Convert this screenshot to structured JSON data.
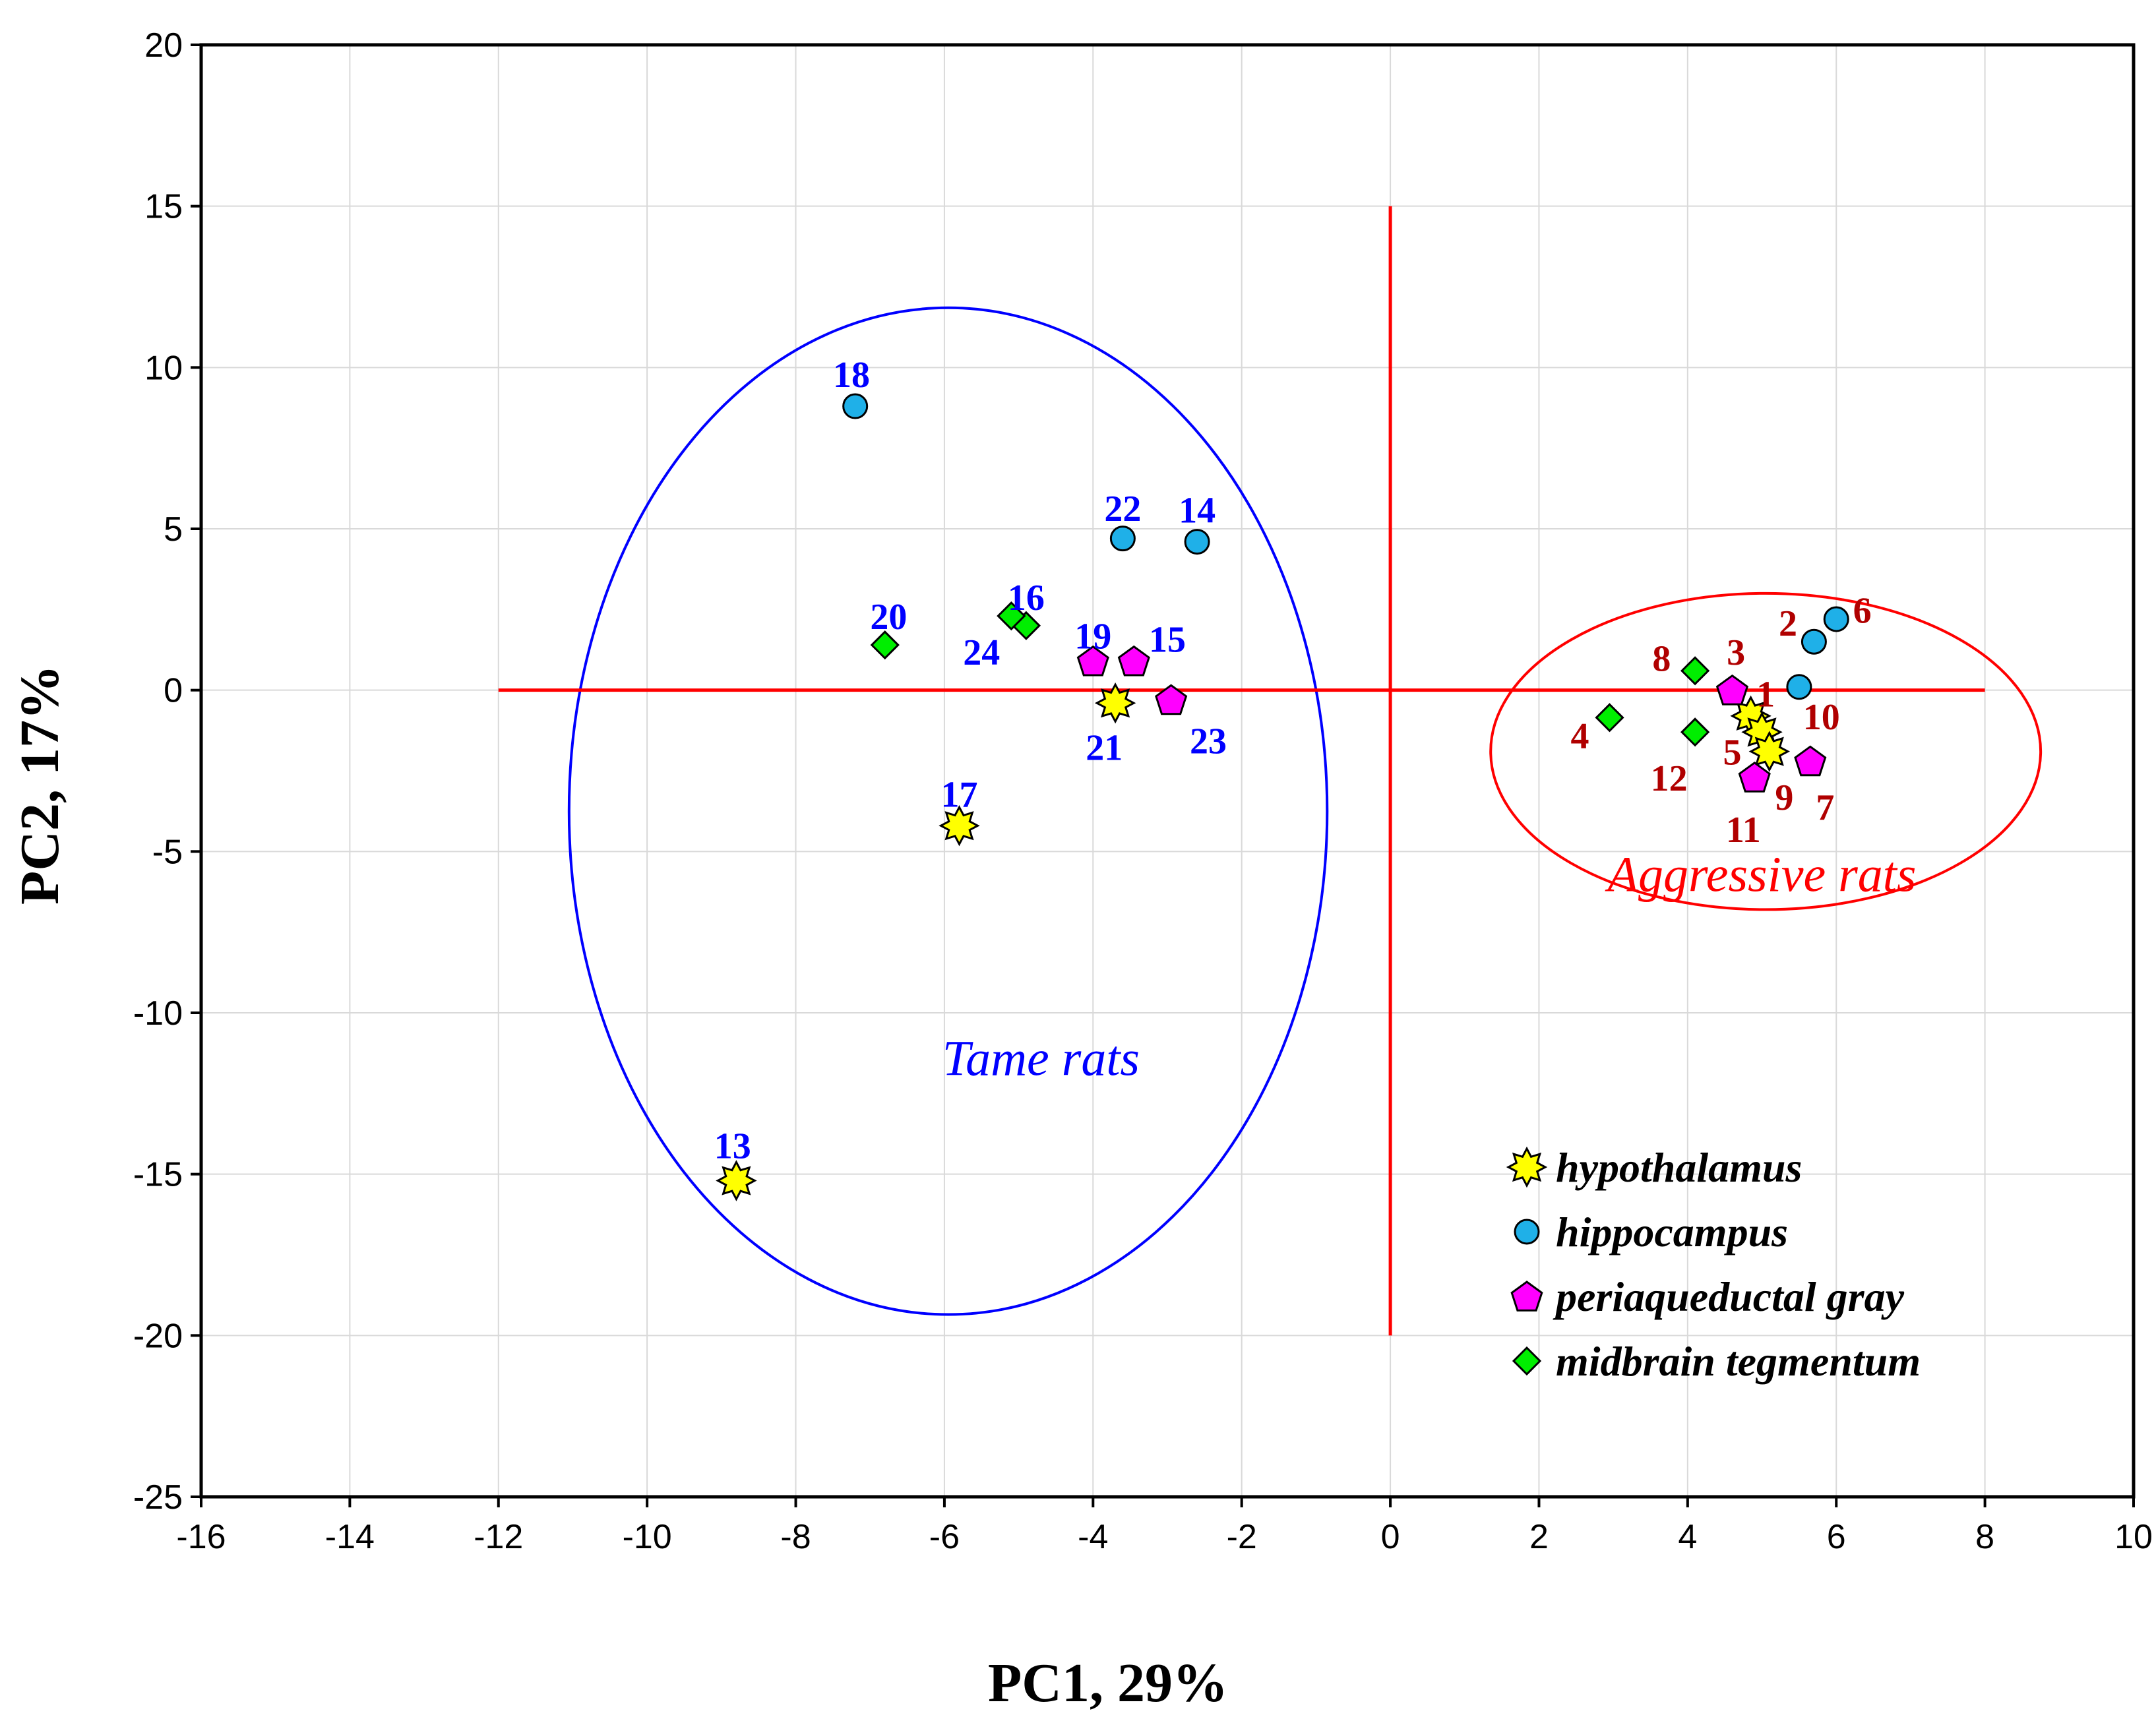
{
  "chart_data": {
    "type": "scatter",
    "title": "",
    "xlabel": "PC1, 29%",
    "ylabel": "PC2, 17%",
    "xlim": [
      -16,
      10
    ],
    "ylim": [
      -25,
      20
    ],
    "xticks": [
      -16,
      -14,
      -12,
      -10,
      -8,
      -6,
      -4,
      -2,
      0,
      2,
      4,
      6,
      8,
      10
    ],
    "yticks": [
      20,
      15,
      10,
      5,
      0,
      -5,
      -10,
      -15,
      -20,
      -25
    ],
    "grid": true,
    "legend_position": "bottom-right",
    "colors": {
      "hypothalamus": "#ffff00",
      "hippocampus": "#1fb0e8",
      "periaqueductal gray": "#ff00ff",
      "midbrain tegmentum": "#00ee00",
      "tame": "#0000ff",
      "aggressive": "#b00000",
      "red_lines": "#ff0000"
    },
    "series": [
      {
        "name": "hypothalamus",
        "marker": "star-icon",
        "points": [
          {
            "x": 4.85,
            "y": -0.8
          },
          {
            "x": 5.0,
            "y": -1.3
          },
          {
            "x": 5.1,
            "y": -1.9
          },
          {
            "x": -8.8,
            "y": -15.2
          },
          {
            "x": -5.8,
            "y": -4.2
          },
          {
            "x": -3.7,
            "y": -0.4
          }
        ]
      },
      {
        "name": "hippocampus",
        "marker": "circle-icon",
        "points": [
          {
            "x": 5.7,
            "y": 1.5
          },
          {
            "x": 6.0,
            "y": 2.2
          },
          {
            "x": 5.5,
            "y": 0.1
          },
          {
            "x": -2.6,
            "y": 4.6
          },
          {
            "x": -7.2,
            "y": 8.8
          },
          {
            "x": -3.6,
            "y": 4.7
          }
        ]
      },
      {
        "name": "periaqueductal gray",
        "marker": "pentagon-icon",
        "points": [
          {
            "x": 4.6,
            "y": 0.0
          },
          {
            "x": 5.65,
            "y": -2.2
          },
          {
            "x": 4.9,
            "y": -2.7
          },
          {
            "x": -3.45,
            "y": 0.9
          },
          {
            "x": -4.0,
            "y": 0.9
          },
          {
            "x": -2.95,
            "y": -0.3
          }
        ]
      },
      {
        "name": "midbrain tegmentum",
        "marker": "diamond-icon",
        "points": [
          {
            "x": 2.95,
            "y": -0.85
          },
          {
            "x": 4.1,
            "y": 0.6
          },
          {
            "x": 4.1,
            "y": -1.3
          },
          {
            "x": -4.9,
            "y": 2.0
          },
          {
            "x": -6.8,
            "y": 1.4
          },
          {
            "x": -5.1,
            "y": 2.3
          }
        ]
      }
    ],
    "point_labels": [
      {
        "text": "1",
        "group": "aggressive",
        "x": 5.05,
        "y": -0.1
      },
      {
        "text": "2",
        "group": "aggressive",
        "x": 5.35,
        "y": 2.1
      },
      {
        "text": "3",
        "group": "aggressive",
        "x": 4.65,
        "y": 1.2
      },
      {
        "text": "4",
        "group": "aggressive",
        "x": 2.55,
        "y": -1.4
      },
      {
        "text": "5",
        "group": "aggressive",
        "x": 4.6,
        "y": -1.9
      },
      {
        "text": "6",
        "group": "aggressive",
        "x": 6.35,
        "y": 2.5
      },
      {
        "text": "7",
        "group": "aggressive",
        "x": 5.85,
        "y": -3.6
      },
      {
        "text": "8",
        "group": "aggressive",
        "x": 3.65,
        "y": 1.0
      },
      {
        "text": "9",
        "group": "aggressive",
        "x": 5.3,
        "y": -3.3
      },
      {
        "text": "10",
        "group": "aggressive",
        "x": 5.8,
        "y": -0.8
      },
      {
        "text": "11",
        "group": "aggressive",
        "x": 4.75,
        "y": -4.3
      },
      {
        "text": "12",
        "group": "aggressive",
        "x": 3.75,
        "y": -2.7
      },
      {
        "text": "13",
        "group": "tame",
        "x": -8.85,
        "y": -14.1
      },
      {
        "text": "14",
        "group": "tame",
        "x": -2.6,
        "y": 5.6
      },
      {
        "text": "15",
        "group": "tame",
        "x": -3.0,
        "y": 1.6
      },
      {
        "text": "16",
        "group": "tame",
        "x": -4.9,
        "y": 2.9
      },
      {
        "text": "17",
        "group": "tame",
        "x": -5.8,
        "y": -3.2
      },
      {
        "text": "18",
        "group": "tame",
        "x": -7.25,
        "y": 9.8
      },
      {
        "text": "19",
        "group": "tame",
        "x": -4.0,
        "y": 1.7
      },
      {
        "text": "20",
        "group": "tame",
        "x": -6.75,
        "y": 2.3
      },
      {
        "text": "21",
        "group": "tame",
        "x": -3.85,
        "y": -1.75
      },
      {
        "text": "22",
        "group": "tame",
        "x": -3.6,
        "y": 5.65
      },
      {
        "text": "23",
        "group": "tame",
        "x": -2.45,
        "y": -1.55
      },
      {
        "text": "24",
        "group": "tame",
        "x": -5.5,
        "y": 1.2
      }
    ],
    "ellipses": [
      {
        "name": "tame",
        "cx": -5.95,
        "cy": -3.75,
        "rx": 5.1,
        "ry": 15.6
      },
      {
        "name": "aggressive",
        "cx": 5.05,
        "cy": -1.9,
        "rx": 3.7,
        "ry": 4.9
      }
    ],
    "group_labels": [
      {
        "text": "Tame rats",
        "group": "tame",
        "x": -4.7,
        "y": -11.4
      },
      {
        "text": "Aggressive rats",
        "group": "aggressive",
        "x": 5.0,
        "y": -5.7
      }
    ],
    "reference_lines": [
      {
        "orientation": "horizontal",
        "y": 0,
        "x_from": -12,
        "x_to": 8
      },
      {
        "orientation": "vertical",
        "x": 0,
        "y_from": -20,
        "y_to": 15
      }
    ],
    "legend": [
      {
        "label": "hypothalamus",
        "marker": "star-icon"
      },
      {
        "label": "hippocampus",
        "marker": "circle-icon"
      },
      {
        "label": "periaqueductal gray",
        "marker": "pentagon-icon"
      },
      {
        "label": "midbrain tegmentum",
        "marker": "diamond-icon"
      }
    ]
  }
}
